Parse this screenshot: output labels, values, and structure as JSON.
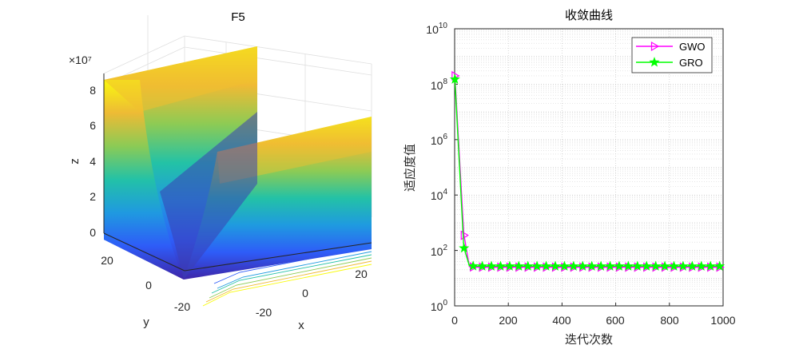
{
  "chart_data": [
    {
      "type": "surface",
      "title": "F5",
      "xlabel": "x",
      "ylabel": "y",
      "zlabel": "z",
      "x_ticks": [
        "-20",
        "0",
        "20"
      ],
      "y_ticks": [
        "-20",
        "0",
        "20"
      ],
      "z_ticks": [
        "0",
        "2",
        "4",
        "6",
        "8"
      ],
      "z_exponent_label": "×10⁷",
      "xlim": [
        -30,
        30
      ],
      "ylim": [
        -30,
        30
      ],
      "zlim": [
        0,
        85000000.0
      ],
      "colormap": [
        "#3e26a8",
        "#2e5cf8",
        "#1f9ae0",
        "#23c2a6",
        "#8dcb54",
        "#f0ba34",
        "#f9fb0e"
      ]
    },
    {
      "type": "line",
      "title": "收敛曲线",
      "xlabel": "迭代次数",
      "ylabel": "适应度值",
      "xlim": [
        0,
        1000
      ],
      "y_scale": "log",
      "ylim": [
        1,
        10000000000.0
      ],
      "x_ticks": [
        "0",
        "200",
        "400",
        "600",
        "800",
        "1000"
      ],
      "y_ticks": [
        {
          "base": "10",
          "exp": "0"
        },
        {
          "base": "10",
          "exp": "2"
        },
        {
          "base": "10",
          "exp": "4"
        },
        {
          "base": "10",
          "exp": "6"
        },
        {
          "base": "10",
          "exp": "8"
        },
        {
          "base": "10",
          "exp": "10"
        }
      ],
      "grid": true,
      "legend_position": "top-right",
      "series": [
        {
          "name": "GWO",
          "color": "#ff00ff",
          "marker": "triangle-right",
          "x": [
            1,
            34,
            55,
            80,
            100,
            200,
            400,
            600,
            800,
            1000
          ],
          "y": [
            200000000.0,
            400,
            26,
            25,
            25,
            25,
            25,
            25,
            25,
            25
          ]
        },
        {
          "name": "GRO",
          "color": "#00ff00",
          "marker": "pentagram",
          "x": [
            1,
            34,
            55,
            80,
            100,
            200,
            400,
            600,
            800,
            1000
          ],
          "y": [
            150000000.0,
            130,
            28,
            27,
            27,
            27,
            27,
            27,
            27,
            27
          ]
        }
      ]
    }
  ]
}
